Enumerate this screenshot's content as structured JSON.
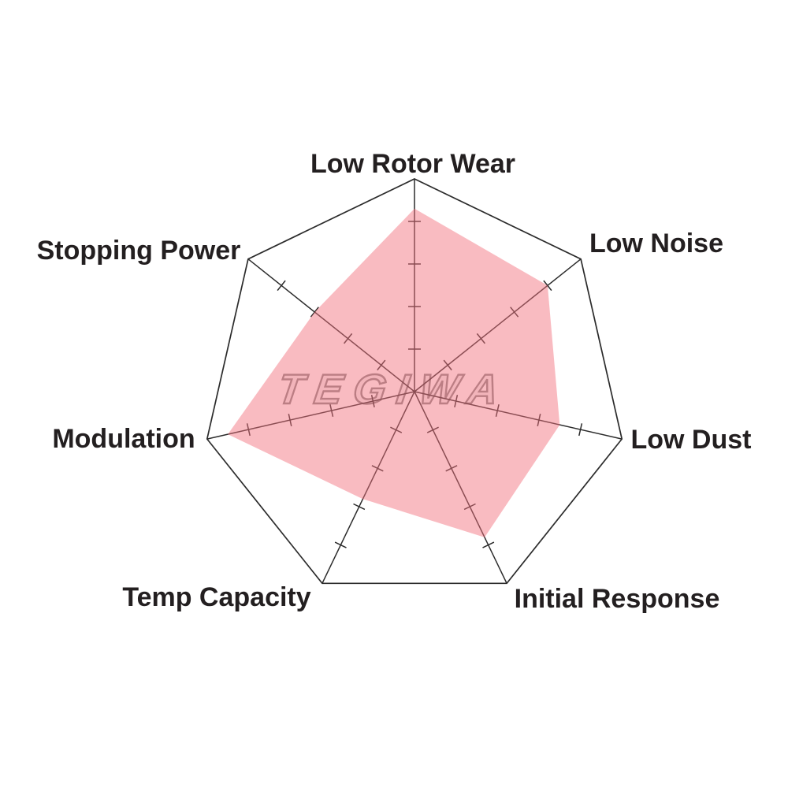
{
  "chart_data": {
    "type": "radar",
    "title": "",
    "categories": [
      "Low Rotor Wear",
      "Low Noise",
      "Low Dust",
      "Initial Response",
      "Temp Capacity",
      "Modulation",
      "Stopping Power"
    ],
    "values": [
      4.3,
      4.0,
      3.5,
      3.8,
      2.8,
      4.5,
      3.0
    ],
    "scale_min": 0,
    "scale_max": 5,
    "tick_step": 1,
    "axes_count": 7,
    "grid_style": "outer heptagon boundary with radial spokes and perpendicular unit ticks, no concentric rings",
    "legend": "none",
    "fill_color": "#F2707D",
    "fill_opacity": 0.48,
    "line_color": "#2B2B2B",
    "label_color": "#231F20",
    "background_color": "#FFFFFF",
    "watermark_text": "TEGIWA",
    "watermark_stroke_color": "#646464",
    "watermark_fill_color": "#B4B4B4"
  }
}
